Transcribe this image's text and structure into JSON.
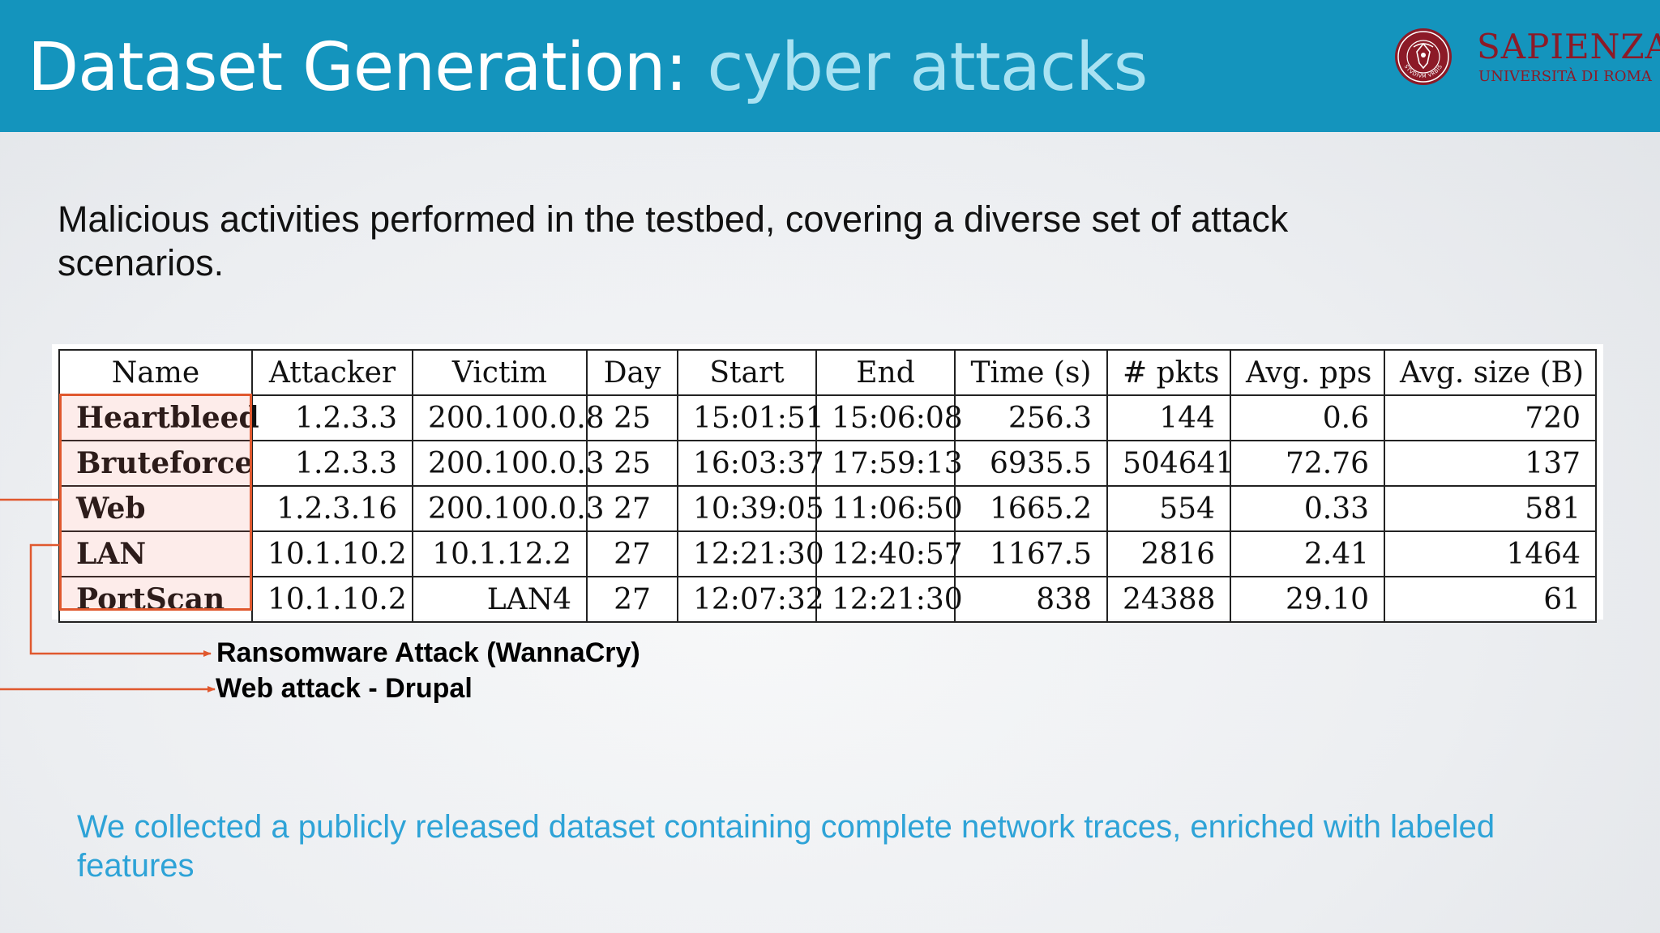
{
  "header": {
    "title_main": "Dataset Generation:",
    "title_accent": "cyber attacks",
    "logo_name": "SAPIENZA",
    "logo_subtitle": "UNIVERSITÀ DI ROMA",
    "seal_text": "STVDIVM VRBIS"
  },
  "intro": "Malicious activities performed in the testbed, covering a diverse set of attack scenarios.",
  "table": {
    "columns": [
      "Name",
      "Attacker",
      "Victim",
      "Day",
      "Start",
      "End",
      "Time (s)",
      "# pkts",
      "Avg. pps",
      "Avg. size (B)"
    ],
    "rows": [
      [
        "Heartbleed",
        "1.2.3.3",
        "200.100.0.8",
        "25",
        "15:01:51",
        "15:06:08",
        "256.3",
        "144",
        "0.6",
        "720"
      ],
      [
        "Bruteforce",
        "1.2.3.3",
        "200.100.0.3",
        "25",
        "16:03:37",
        "17:59:13",
        "6935.5",
        "504641",
        "72.76",
        "137"
      ],
      [
        "Web",
        "1.2.3.16",
        "200.100.0.3",
        "27",
        "10:39:05",
        "11:06:50",
        "1665.2",
        "554",
        "0.33",
        "581"
      ],
      [
        "LAN",
        "10.1.10.2",
        "10.1.12.2",
        "27",
        "12:21:30",
        "12:40:57",
        "1167.5",
        "2816",
        "2.41",
        "1464"
      ],
      [
        "PortScan",
        "10.1.10.2",
        "LAN4",
        "27",
        "12:07:32",
        "12:21:30",
        "838",
        "24388",
        "29.10",
        "61"
      ]
    ]
  },
  "callouts": {
    "ransomware": "Ransomware Attack (WannaCry)",
    "web_attack": "Web attack - Drupal"
  },
  "note": "We collected a publicly released dataset containing complete network traces, enriched with labeled features",
  "colors": {
    "header_bg": "#1494bd",
    "title_accent": "#a9e2f2",
    "highlight": "#e0582e",
    "note_text": "#2ea3d7",
    "logo": "#8c1a27"
  }
}
